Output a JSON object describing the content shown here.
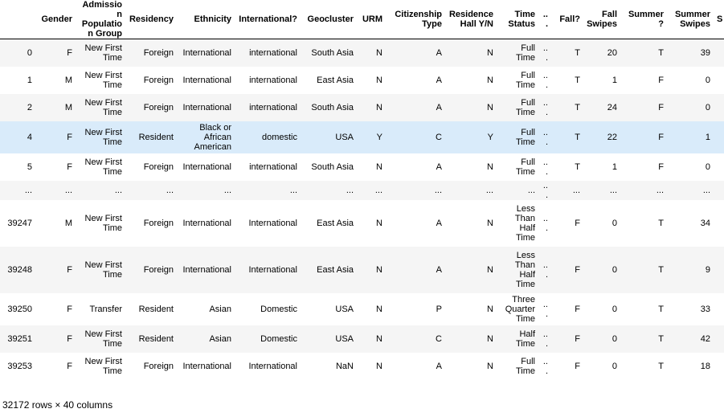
{
  "columns": [
    {
      "key": "idx",
      "label": "",
      "width": 44
    },
    {
      "key": "gender",
      "label": "Gender",
      "width": 50
    },
    {
      "key": "admission",
      "label": "Admission Population Group",
      "width": 62
    },
    {
      "key": "residency",
      "label": "Residency",
      "width": 64
    },
    {
      "key": "ethnicity",
      "label": "Ethnicity",
      "width": 72
    },
    {
      "key": "international",
      "label": "International?",
      "width": 82
    },
    {
      "key": "geocluster",
      "label": "Geocluster",
      "width": 70
    },
    {
      "key": "urm",
      "label": "URM",
      "width": 36
    },
    {
      "key": "citizenship",
      "label": "Citizenship Type",
      "width": 74
    },
    {
      "key": "residence_hall",
      "label": "Residence Hall Y/N",
      "width": 64
    },
    {
      "key": "time_status",
      "label": "Time Status",
      "width": 52
    },
    {
      "key": "ellipsis",
      "label": "...",
      "width": 16
    },
    {
      "key": "fall",
      "label": "Fall?",
      "width": 40
    },
    {
      "key": "fall_swipes",
      "label": "Fall Swipes",
      "width": 46
    },
    {
      "key": "summer",
      "label": "Summer?",
      "width": 58
    },
    {
      "key": "summer_swipes",
      "label": "Summer Swipes",
      "width": 58
    },
    {
      "key": "cut",
      "label": "S",
      "width": 15
    }
  ],
  "rows": [
    {
      "style": "odd",
      "h": "n",
      "cells": [
        "0",
        "F",
        "New First Time",
        "Foreign",
        "International",
        "international",
        "South Asia",
        "N",
        "A",
        "N",
        "Full Time",
        "...",
        "T",
        "20",
        "T",
        "39",
        ""
      ]
    },
    {
      "style": "even",
      "h": "n",
      "cells": [
        "1",
        "M",
        "New First Time",
        "Foreign",
        "International",
        "international",
        "East Asia",
        "N",
        "A",
        "N",
        "Full Time",
        "...",
        "T",
        "1",
        "F",
        "0",
        ""
      ]
    },
    {
      "style": "odd",
      "h": "n",
      "cells": [
        "2",
        "M",
        "New First Time",
        "Foreign",
        "International",
        "international",
        "South Asia",
        "N",
        "A",
        "N",
        "Full Time",
        "...",
        "T",
        "24",
        "F",
        "0",
        ""
      ]
    },
    {
      "style": "hl",
      "h": "tall2",
      "cells": [
        "4",
        "F",
        "New First Time",
        "Resident",
        "Black or African American",
        "domestic",
        "USA",
        "Y",
        "C",
        "Y",
        "Full Time",
        "...",
        "T",
        "22",
        "F",
        "1",
        ""
      ]
    },
    {
      "style": "even",
      "h": "n",
      "cells": [
        "5",
        "F",
        "New First Time",
        "Foreign",
        "International",
        "international",
        "South Asia",
        "N",
        "A",
        "N",
        "Full Time",
        "...",
        "T",
        "1",
        "F",
        "0",
        ""
      ]
    },
    {
      "style": "odd",
      "h": "ell",
      "cells": [
        "...",
        "...",
        "...",
        "...",
        "...",
        "...",
        "...",
        "...",
        "...",
        "...",
        "...",
        "...",
        "...",
        "...",
        "...",
        "...",
        ""
      ]
    },
    {
      "style": "even",
      "h": "tall4",
      "cells": [
        "39247",
        "M",
        "New First Time",
        "Foreign",
        "International",
        "International",
        "East Asia",
        "N",
        "A",
        "N",
        "Less Than Half Time",
        "...",
        "F",
        "0",
        "T",
        "34",
        ""
      ]
    },
    {
      "style": "odd",
      "h": "tall4",
      "cells": [
        "39248",
        "F",
        "New First Time",
        "Foreign",
        "International",
        "International",
        "East Asia",
        "N",
        "A",
        "N",
        "Less Than Half Time",
        "...",
        "F",
        "0",
        "T",
        "9",
        ""
      ]
    },
    {
      "style": "even",
      "h": "tall2",
      "cells": [
        "39250",
        "F",
        "Transfer",
        "Resident",
        "Asian",
        "Domestic",
        "USA",
        "N",
        "P",
        "N",
        "Three Quarter Time",
        "...",
        "F",
        "0",
        "T",
        "33",
        ""
      ]
    },
    {
      "style": "odd",
      "h": "n",
      "cells": [
        "39251",
        "F",
        "New First Time",
        "Resident",
        "Asian",
        "Domestic",
        "USA",
        "N",
        "C",
        "N",
        "Half Time",
        "...",
        "F",
        "0",
        "T",
        "42",
        ""
      ]
    },
    {
      "style": "even",
      "h": "n",
      "cells": [
        "39253",
        "F",
        "New First Time",
        "Foreign",
        "International",
        "International",
        "NaN",
        "N",
        "A",
        "N",
        "Full Time",
        "...",
        "F",
        "0",
        "T",
        "18",
        ""
      ]
    }
  ],
  "footer": "32172 rows × 40 columns"
}
